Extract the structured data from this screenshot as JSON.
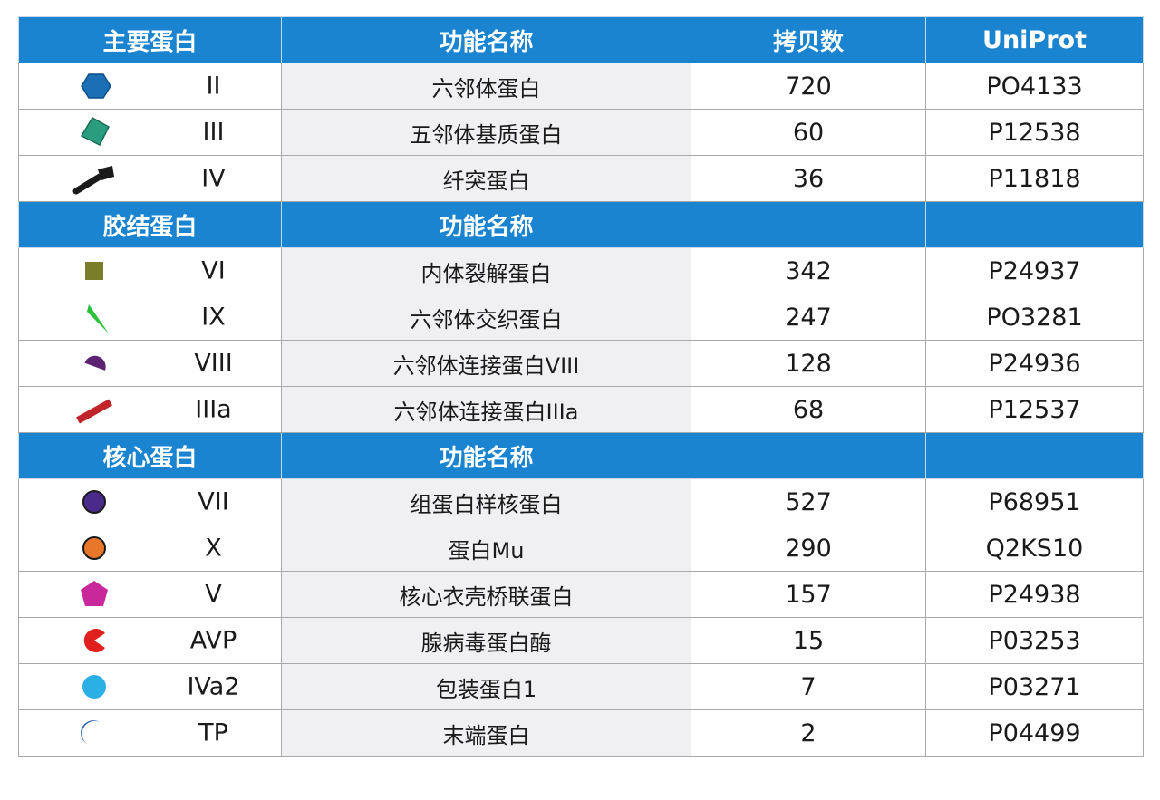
{
  "header": {
    "col_protein": "主要蛋白",
    "col_function": "功能名称",
    "col_copies": "拷贝数",
    "col_uniprot": "UniProt"
  },
  "sections": [
    {
      "title": "主要蛋白",
      "function_header": "功能名称",
      "copies_header": "拷贝数",
      "uniprot_header": "UniProt",
      "rows": [
        {
          "icon": "hexagon-icon",
          "color": "#1a6fb5",
          "protein": "II",
          "function": "六邻体蛋白",
          "copies": "720",
          "uniprot": "PO4133"
        },
        {
          "icon": "diamond-icon",
          "color": "#2a9d7f",
          "protein": "III",
          "function": "五邻体基质蛋白",
          "copies": "60",
          "uniprot": "P12538"
        },
        {
          "icon": "fiber-icon",
          "color": "#1a1a1a",
          "protein": "IV",
          "function": "纤突蛋白",
          "copies": "36",
          "uniprot": "P11818"
        }
      ]
    },
    {
      "title": "胶结蛋白",
      "function_header": "功能名称",
      "copies_header": "",
      "uniprot_header": "",
      "rows": [
        {
          "icon": "square-icon",
          "color": "#7a7d2a",
          "protein": "VI",
          "function": "内体裂解蛋白",
          "copies": "342",
          "uniprot": "P24937"
        },
        {
          "icon": "wedge-icon",
          "color": "#2bbf3a",
          "protein": "IX",
          "function": "六邻体交织蛋白",
          "copies": "247",
          "uniprot": "PO3281"
        },
        {
          "icon": "half-circle-icon",
          "color": "#5c2373",
          "protein": "VIII",
          "function": "六邻体连接蛋白VIII",
          "copies": "128",
          "uniprot": "P24936"
        },
        {
          "icon": "rod-icon",
          "color": "#c0232a",
          "protein": "IIIa",
          "function": "六邻体连接蛋白IIIa",
          "copies": "68",
          "uniprot": "P12537"
        }
      ]
    },
    {
      "title": "核心蛋白",
      "function_header": "功能名称",
      "copies_header": "",
      "uniprot_header": "",
      "rows": [
        {
          "icon": "circle-icon",
          "color": "#4a2a8a",
          "protein": "VII",
          "function": "组蛋白样核蛋白",
          "copies": "527",
          "uniprot": "P68951"
        },
        {
          "icon": "ring-icon",
          "color": "#e8772a",
          "protein": "X",
          "function": "蛋白Mu",
          "copies": "290",
          "uniprot": "Q2KS10"
        },
        {
          "icon": "pentagon-icon",
          "color": "#c8289a",
          "protein": "V",
          "function": "核心衣壳桥联蛋白",
          "copies": "157",
          "uniprot": "P24938"
        },
        {
          "icon": "pacman-icon",
          "color": "#e0201c",
          "protein": "AVP",
          "function": "腺病毒蛋白酶",
          "copies": "15",
          "uniprot": "P03253"
        },
        {
          "icon": "light-circle-icon",
          "color": "#2bb0e6",
          "protein": "IVa2",
          "function": "包装蛋白1",
          "copies": "7",
          "uniprot": "P03271"
        },
        {
          "icon": "crescent-icon",
          "color": "#2a5fb0",
          "protein": "TP",
          "function": "末端蛋白",
          "copies": "2",
          "uniprot": "P04499"
        }
      ]
    }
  ]
}
